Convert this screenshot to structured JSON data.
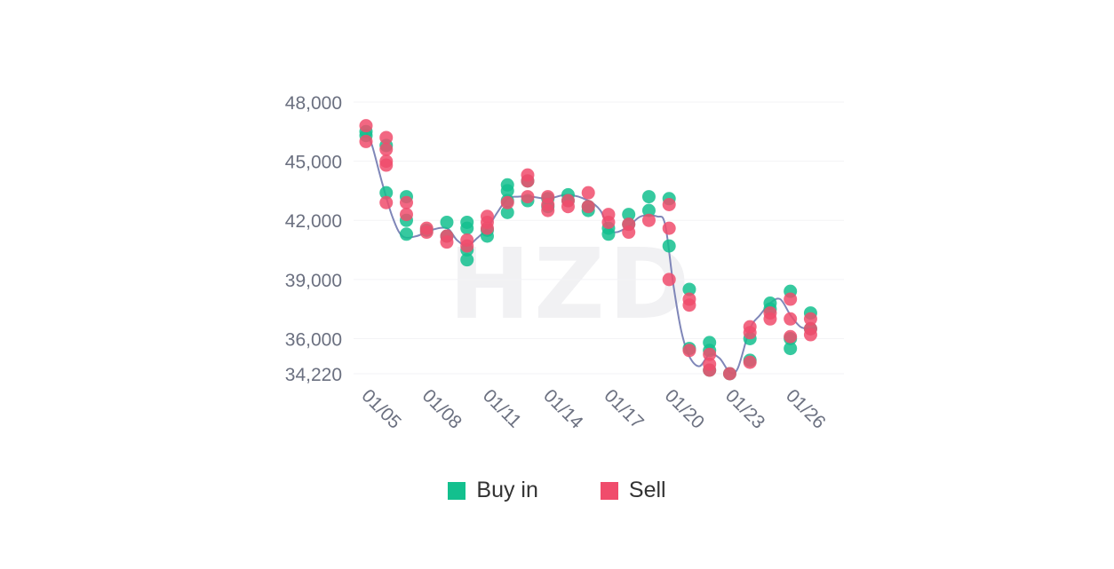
{
  "chart_data": {
    "type": "scatter",
    "watermark": "HZD",
    "y_ticks": [
      "48,000",
      "45,000",
      "42,000",
      "39,000",
      "36,000",
      "34,220"
    ],
    "y_tick_values": [
      48000,
      45000,
      42000,
      39000,
      36000,
      34220
    ],
    "x_ticks": [
      "01/05",
      "01/08",
      "01/11",
      "01/14",
      "01/17",
      "01/20",
      "01/23",
      "01/26"
    ],
    "x_tick_values": [
      5,
      8,
      11,
      14,
      17,
      20,
      23,
      26
    ],
    "xlim": [
      5,
      28.3
    ],
    "ylim": [
      34220,
      48000
    ],
    "grid": true,
    "legend_position": "bottom",
    "colors": {
      "buy": "#13c08e",
      "sell": "#f04c6c",
      "line": "#7f86b8"
    },
    "series": [
      {
        "name": "Buy in",
        "color": "#13c08e",
        "points": [
          [
            5,
            46500
          ],
          [
            5,
            46300
          ],
          [
            6,
            43400
          ],
          [
            6,
            45800
          ],
          [
            7,
            43200
          ],
          [
            7,
            42000
          ],
          [
            7,
            41300
          ],
          [
            8,
            41500
          ],
          [
            9,
            41900
          ],
          [
            9,
            41200
          ],
          [
            10,
            41900
          ],
          [
            10,
            41600
          ],
          [
            10,
            40500
          ],
          [
            10,
            40000
          ],
          [
            11,
            41200
          ],
          [
            11,
            41500
          ],
          [
            12,
            43800
          ],
          [
            12,
            43500
          ],
          [
            12,
            43000
          ],
          [
            12,
            42400
          ],
          [
            13,
            44000
          ],
          [
            13,
            43000
          ],
          [
            14,
            43100
          ],
          [
            14,
            42700
          ],
          [
            15,
            43300
          ],
          [
            15,
            43000
          ],
          [
            16,
            42700
          ],
          [
            16,
            42500
          ],
          [
            17,
            41600
          ],
          [
            17,
            41300
          ],
          [
            18,
            42300
          ],
          [
            18,
            41800
          ],
          [
            19,
            43200
          ],
          [
            19,
            42500
          ],
          [
            20,
            43100
          ],
          [
            20,
            40700
          ],
          [
            21,
            38500
          ],
          [
            21,
            35500
          ],
          [
            22,
            35800
          ],
          [
            22,
            35400
          ],
          [
            22,
            34400
          ],
          [
            23,
            34220
          ],
          [
            24,
            36000
          ],
          [
            24,
            34900
          ],
          [
            25,
            37800
          ],
          [
            25,
            37500
          ],
          [
            26,
            38400
          ],
          [
            26,
            36000
          ],
          [
            26,
            35500
          ],
          [
            27,
            37300
          ],
          [
            27,
            36500
          ]
        ]
      },
      {
        "name": "Sell",
        "color": "#f04c6c",
        "points": [
          [
            5,
            46800
          ],
          [
            5,
            46000
          ],
          [
            6,
            46200
          ],
          [
            6,
            45600
          ],
          [
            6,
            45000
          ],
          [
            6,
            44800
          ],
          [
            6,
            42900
          ],
          [
            7,
            42900
          ],
          [
            7,
            42300
          ],
          [
            8,
            41600
          ],
          [
            8,
            41400
          ],
          [
            9,
            41200
          ],
          [
            9,
            40900
          ],
          [
            10,
            41000
          ],
          [
            10,
            40700
          ],
          [
            11,
            42200
          ],
          [
            11,
            41900
          ],
          [
            11,
            41600
          ],
          [
            12,
            42900
          ],
          [
            13,
            44300
          ],
          [
            13,
            44000
          ],
          [
            13,
            43200
          ],
          [
            14,
            43200
          ],
          [
            14,
            42800
          ],
          [
            14,
            42500
          ],
          [
            15,
            43000
          ],
          [
            15,
            42700
          ],
          [
            16,
            43400
          ],
          [
            16,
            42700
          ],
          [
            17,
            42300
          ],
          [
            17,
            41900
          ],
          [
            18,
            41800
          ],
          [
            18,
            41400
          ],
          [
            19,
            42000
          ],
          [
            20,
            42800
          ],
          [
            20,
            41600
          ],
          [
            20,
            39000
          ],
          [
            21,
            38000
          ],
          [
            21,
            37700
          ],
          [
            21,
            35400
          ],
          [
            22,
            35200
          ],
          [
            22,
            34700
          ],
          [
            22,
            34400
          ],
          [
            23,
            34220
          ],
          [
            24,
            36600
          ],
          [
            24,
            36300
          ],
          [
            24,
            34800
          ],
          [
            25,
            37300
          ],
          [
            25,
            37000
          ],
          [
            26,
            38000
          ],
          [
            26,
            37000
          ],
          [
            26,
            36100
          ],
          [
            27,
            37000
          ],
          [
            27,
            36500
          ],
          [
            27,
            36200
          ]
        ]
      }
    ],
    "trend_line": [
      [
        5,
        46500
      ],
      [
        5.3,
        45800
      ],
      [
        5.8,
        43900
      ],
      [
        6.3,
        42200
      ],
      [
        6.8,
        41200
      ],
      [
        7.5,
        41200
      ],
      [
        8.2,
        41500
      ],
      [
        9,
        41600
      ],
      [
        9.5,
        41000
      ],
      [
        10,
        40700
      ],
      [
        10.5,
        41100
      ],
      [
        11,
        41600
      ],
      [
        11.5,
        42400
      ],
      [
        12,
        43100
      ],
      [
        12.5,
        43200
      ],
      [
        13.2,
        43200
      ],
      [
        14,
        43100
      ],
      [
        15,
        43300
      ],
      [
        16,
        43000
      ],
      [
        16.6,
        42500
      ],
      [
        17,
        41600
      ],
      [
        17.4,
        41400
      ],
      [
        18,
        41700
      ],
      [
        18.6,
        42200
      ],
      [
        19.4,
        42200
      ],
      [
        19.8,
        41800
      ],
      [
        20.2,
        38800
      ],
      [
        20.6,
        36400
      ],
      [
        21,
        35100
      ],
      [
        21.5,
        34600
      ],
      [
        22,
        35200
      ],
      [
        22.5,
        35000
      ],
      [
        23,
        34300
      ],
      [
        23.4,
        34500
      ],
      [
        24,
        36500
      ],
      [
        24.5,
        37200
      ],
      [
        25,
        37800
      ],
      [
        25.5,
        38000
      ],
      [
        26,
        37200
      ],
      [
        26.5,
        36600
      ],
      [
        27,
        36500
      ],
      [
        27.3,
        36600
      ]
    ]
  },
  "legend": {
    "buy_label": "Buy in",
    "sell_label": "Sell"
  }
}
